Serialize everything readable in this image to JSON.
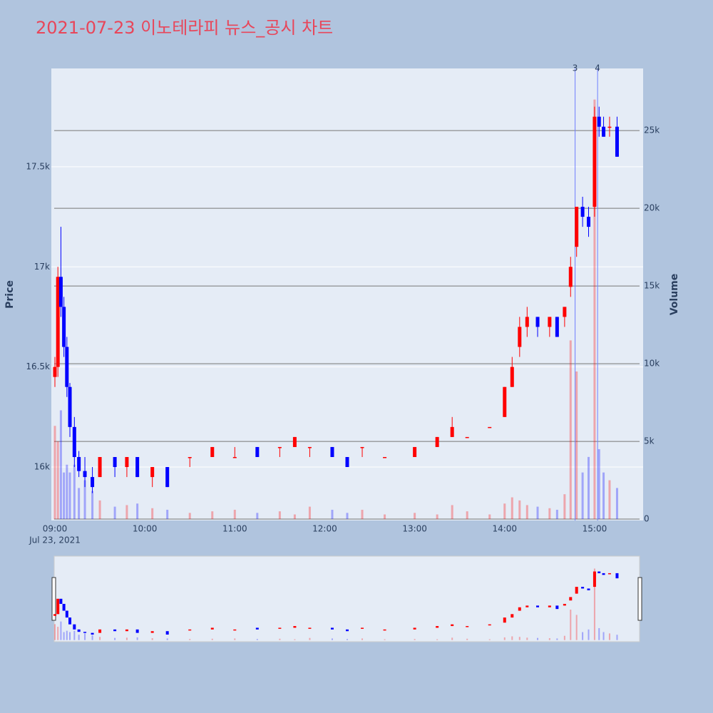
{
  "chart_data": {
    "type": "candlestick",
    "title": "2021-07-23 이노테라피 뉴스_공시 차트",
    "ylabel": "Price",
    "y2label": "Volume",
    "x_date_label": "Jul 23, 2021",
    "up_color": "#ff0000",
    "down_color": "#0000ff",
    "xlim": [
      "09:00",
      "15:30"
    ],
    "xticks": [
      "09:00",
      "10:00",
      "11:00",
      "12:00",
      "13:00",
      "14:00",
      "15:00"
    ],
    "ylim": [
      15733,
      17991
    ],
    "yticks": [
      {
        "value": 16000,
        "label": "16k"
      },
      {
        "value": 16500,
        "label": "16.5k"
      },
      {
        "value": 17000,
        "label": "17k"
      },
      {
        "value": 17500,
        "label": "17.5k"
      }
    ],
    "y2lim": [
      -90,
      29000
    ],
    "y2ticks": [
      0,
      {
        "value": 5000,
        "label": "5k"
      },
      {
        "value": 10000,
        "label": "10k"
      },
      {
        "value": 15000,
        "label": "15k"
      },
      {
        "value": 20000,
        "label": "20k"
      },
      {
        "value": 25000,
        "label": "25k"
      }
    ],
    "annotations": [
      {
        "x": "14:47",
        "text": "3"
      },
      {
        "x": "15:02",
        "text": "4"
      }
    ],
    "x": [
      "09:00",
      "09:02",
      "09:04",
      "09:06",
      "09:08",
      "09:10",
      "09:13",
      "09:16",
      "09:20",
      "09:25",
      "09:30",
      "09:40",
      "09:48",
      "09:55",
      "10:05",
      "10:15",
      "10:30",
      "10:45",
      "11:00",
      "11:15",
      "11:30",
      "11:40",
      "11:50",
      "12:05",
      "12:15",
      "12:25",
      "12:40",
      "13:00",
      "13:15",
      "13:25",
      "13:35",
      "13:50",
      "14:00",
      "14:05",
      "14:10",
      "14:15",
      "14:22",
      "14:30",
      "14:35",
      "14:40",
      "14:44",
      "14:48",
      "14:52",
      "14:56",
      "15:00",
      "15:03",
      "15:06",
      "15:10",
      "15:15"
    ],
    "open": [
      16450,
      16500,
      16950,
      16800,
      16600,
      16400,
      16200,
      16050,
      15980,
      15950,
      15950,
      16050,
      16000,
      16050,
      15950,
      16000,
      16050,
      16050,
      16050,
      16100,
      16100,
      16100,
      16100,
      16100,
      16050,
      16100,
      16050,
      16050,
      16100,
      16150,
      16150,
      16200,
      16250,
      16400,
      16600,
      16700,
      16750,
      16700,
      16750,
      16750,
      16900,
      17100,
      17300,
      17250,
      17300,
      17750,
      17700,
      17700,
      17700
    ],
    "high": [
      16550,
      17000,
      17200,
      16850,
      16650,
      16420,
      16250,
      16080,
      16050,
      16000,
      16050,
      16050,
      16050,
      16050,
      16000,
      16000,
      16050,
      16100,
      16100,
      16100,
      16100,
      16150,
      16100,
      16100,
      16050,
      16100,
      16050,
      16100,
      16150,
      16250,
      16150,
      16200,
      16400,
      16550,
      16750,
      16800,
      16750,
      16750,
      16750,
      16800,
      17050,
      17300,
      17350,
      17300,
      17800,
      17800,
      17750,
      17750,
      17750
    ],
    "low": [
      16400,
      16450,
      16750,
      16550,
      16350,
      16150,
      16000,
      15950,
      15900,
      15870,
      15950,
      15950,
      15950,
      15950,
      15900,
      15900,
      16000,
      16050,
      16050,
      16050,
      16050,
      16100,
      16050,
      16050,
      16000,
      16050,
      16050,
      16050,
      16100,
      16150,
      16150,
      16200,
      16250,
      16400,
      16550,
      16650,
      16650,
      16650,
      16650,
      16700,
      16850,
      17050,
      17200,
      17150,
      17250,
      17650,
      17650,
      17650,
      17550
    ],
    "close": [
      16500,
      16950,
      16800,
      16600,
      16400,
      16200,
      16050,
      15980,
      15950,
      15900,
      16050,
      16000,
      16050,
      15950,
      16000,
      15900,
      16050,
      16100,
      16050,
      16050,
      16100,
      16150,
      16100,
      16050,
      16000,
      16100,
      16050,
      16100,
      16150,
      16200,
      16150,
      16200,
      16400,
      16500,
      16700,
      16750,
      16700,
      16750,
      16650,
      16800,
      17000,
      17300,
      17250,
      17200,
      17750,
      17700,
      17650,
      17700,
      17550
    ],
    "volume": [
      6000,
      5000,
      7000,
      3000,
      3500,
      3000,
      3500,
      2000,
      2500,
      1800,
      1200,
      800,
      900,
      1000,
      700,
      600,
      400,
      500,
      600,
      400,
      500,
      300,
      800,
      600,
      400,
      600,
      300,
      400,
      300,
      900,
      500,
      300,
      1000,
      1400,
      1200,
      900,
      800,
      700,
      600,
      1600,
      11500,
      9500,
      3000,
      4000,
      27000,
      4500,
      3000,
      2500,
      2000
    ]
  }
}
